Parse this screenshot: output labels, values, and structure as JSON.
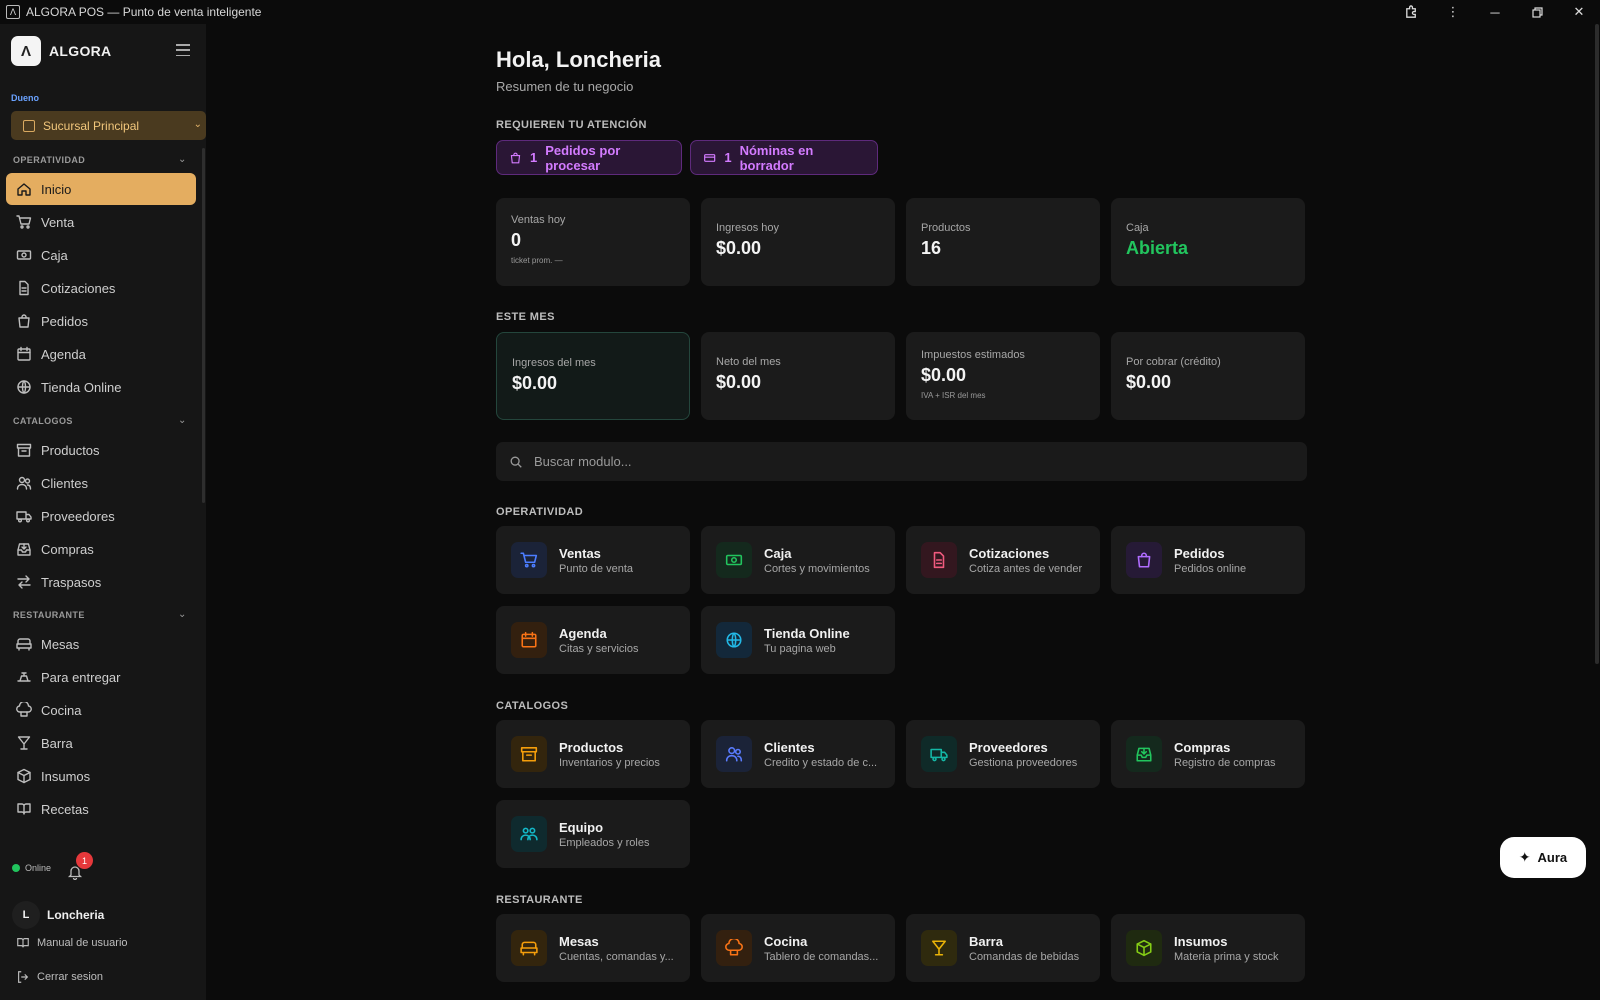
{
  "window": {
    "title": "ALGORA POS — Punto de venta inteligente",
    "app_glyph": "Λ"
  },
  "brand": {
    "name": "ALGORA",
    "logo_glyph": "Λ"
  },
  "sidebar": {
    "role": "Dueno",
    "branch": "Sucursal Principal",
    "sections": [
      {
        "title": "OPERATIVIDAD",
        "items": [
          {
            "label": "Inicio",
            "icon": "home-icon"
          },
          {
            "label": "Venta",
            "icon": "cart-icon"
          },
          {
            "label": "Caja",
            "icon": "cash-icon"
          },
          {
            "label": "Cotizaciones",
            "icon": "document-icon"
          },
          {
            "label": "Pedidos",
            "icon": "bag-icon"
          },
          {
            "label": "Agenda",
            "icon": "calendar-icon"
          },
          {
            "label": "Tienda Online",
            "icon": "globe-icon"
          }
        ]
      },
      {
        "title": "CATALOGOS",
        "items": [
          {
            "label": "Productos",
            "icon": "archive-icon"
          },
          {
            "label": "Clientes",
            "icon": "users-icon"
          },
          {
            "label": "Proveedores",
            "icon": "truck-icon"
          },
          {
            "label": "Compras",
            "icon": "inbox-icon"
          },
          {
            "label": "Traspasos",
            "icon": "transfer-icon"
          }
        ]
      },
      {
        "title": "RESTAURANTE",
        "items": [
          {
            "label": "Mesas",
            "icon": "sofa-icon"
          },
          {
            "label": "Para entregar",
            "icon": "delivery-icon"
          },
          {
            "label": "Cocina",
            "icon": "chef-hat-icon"
          },
          {
            "label": "Barra",
            "icon": "cocktail-icon"
          },
          {
            "label": "Insumos",
            "icon": "box-icon"
          },
          {
            "label": "Recetas",
            "icon": "book-icon"
          }
        ]
      }
    ],
    "status": "Online",
    "notifications": "1",
    "user": {
      "initial": "L",
      "name": "Loncheria"
    },
    "manual": "Manual de usuario",
    "logout": "Cerrar sesion"
  },
  "main": {
    "greeting": "Hola, Loncheria",
    "subtitle": "Resumen de tu negocio",
    "attention_title": "REQUIEREN TU ATENCIÓN",
    "attention": [
      {
        "count": "1",
        "label": "Pedidos por procesar",
        "icon": "bag-icon"
      },
      {
        "count": "1",
        "label": "Nóminas en borrador",
        "icon": "payroll-card-icon"
      }
    ],
    "today": [
      {
        "label": "Ventas hoy",
        "value": "0",
        "sub": "ticket prom. —"
      },
      {
        "label": "Ingresos hoy",
        "value": "$0.00"
      },
      {
        "label": "Productos",
        "value": "16"
      },
      {
        "label": "Caja",
        "value": "Abierta"
      }
    ],
    "month_title": "ESTE MES",
    "month": [
      {
        "label": "Ingresos del mes",
        "value": "$0.00"
      },
      {
        "label": "Neto del mes",
        "value": "$0.00"
      },
      {
        "label": "Impuestos estimados",
        "value": "$0.00",
        "sub": "IVA + ISR del mes"
      },
      {
        "label": "Por cobrar (crédito)",
        "value": "$0.00"
      }
    ],
    "search_placeholder": "Buscar modulo...",
    "modules_op_title": "OPERATIVIDAD",
    "modules_op": [
      {
        "title": "Ventas",
        "sub": "Punto de venta",
        "icon": "cart-icon",
        "color": "#4c7dff",
        "bg": "#1b2338"
      },
      {
        "title": "Caja",
        "sub": "Cortes y movimientos",
        "icon": "cash-icon",
        "color": "#22c55e",
        "bg": "#14291d"
      },
      {
        "title": "Cotizaciones",
        "sub": "Cotiza antes de vender",
        "icon": "document-icon",
        "color": "#f05a7e",
        "bg": "#33171f"
      },
      {
        "title": "Pedidos",
        "sub": "Pedidos online",
        "icon": "bag-icon",
        "color": "#b06cff",
        "bg": "#261a36"
      },
      {
        "title": "Agenda",
        "sub": "Citas y servicios",
        "icon": "calendar-icon",
        "color": "#f97316",
        "bg": "#33200f"
      },
      {
        "title": "Tienda Online",
        "sub": "Tu pagina web",
        "icon": "globe-icon",
        "color": "#22b8e6",
        "bg": "#13283a"
      }
    ],
    "modules_cat_title": "CATALOGOS",
    "modules_cat": [
      {
        "title": "Productos",
        "sub": "Inventarios y precios",
        "icon": "archive-icon",
        "color": "#f59e0b",
        "bg": "#33250d"
      },
      {
        "title": "Clientes",
        "sub": "Credito y estado de c...",
        "icon": "users-icon",
        "color": "#5a7cff",
        "bg": "#1b2338"
      },
      {
        "title": "Proveedores",
        "sub": "Gestiona proveedores",
        "icon": "truck-icon",
        "color": "#14b8a6",
        "bg": "#0f2a28"
      },
      {
        "title": "Compras",
        "sub": "Registro de compras",
        "icon": "inbox-icon",
        "color": "#22c55e",
        "bg": "#14291d"
      },
      {
        "title": "Equipo",
        "sub": "Empleados y roles",
        "icon": "team-icon",
        "color": "#14b8c8",
        "bg": "#0f2a2e"
      }
    ],
    "modules_rest_title": "RESTAURANTE",
    "modules_rest": [
      {
        "title": "Mesas",
        "sub": "Cuentas, comandas y...",
        "icon": "sofa-icon",
        "color": "#f59e0b",
        "bg": "#33250d"
      },
      {
        "title": "Cocina",
        "sub": "Tablero de comandas...",
        "icon": "chef-hat-icon",
        "color": "#f97316",
        "bg": "#33200f"
      },
      {
        "title": "Barra",
        "sub": "Comandas de bebidas",
        "icon": "cocktail-icon",
        "color": "#eab308",
        "bg": "#2f2a0e"
      },
      {
        "title": "Insumos",
        "sub": "Materia prima y stock",
        "icon": "box-icon",
        "color": "#84cc16",
        "bg": "#1f2a10"
      }
    ]
  },
  "aura": {
    "label": "Aura",
    "icon": "sparkle-icon"
  }
}
